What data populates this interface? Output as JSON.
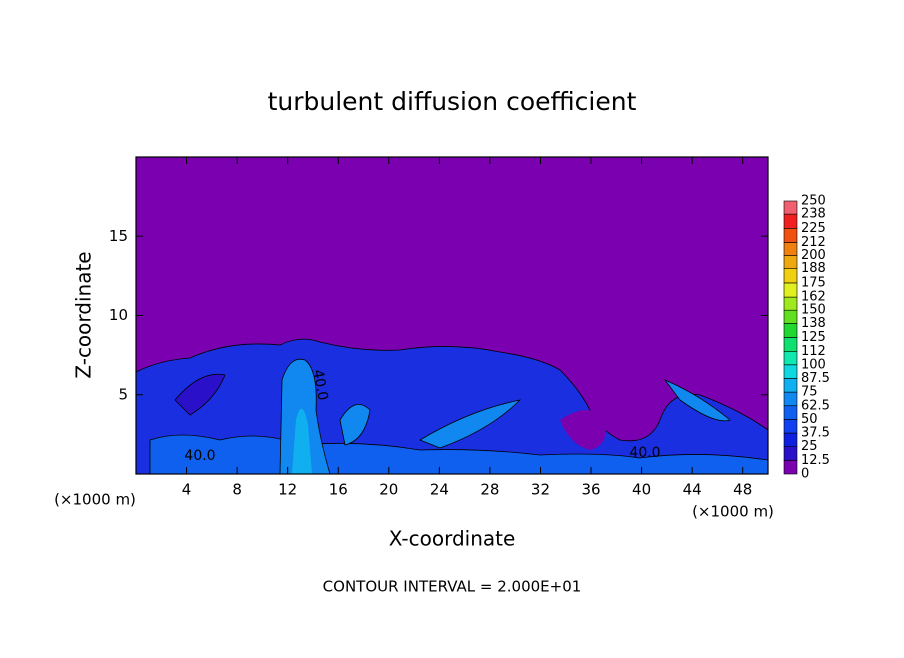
{
  "chart_data": {
    "type": "contour",
    "title": "turbulent diffusion coefficient",
    "xlabel": "X-coordinate",
    "ylabel": "Z-coordinate",
    "x_unit_left": "(×1000 m)",
    "x_unit_right": "(×1000 m)",
    "footer": "CONTOUR INTERVAL = 2.000E+01",
    "contour_labels": [
      "40.0",
      "40.0",
      "40.0"
    ],
    "xlim": [
      0,
      50
    ],
    "xticks": [
      4,
      8,
      12,
      16,
      20,
      24,
      28,
      32,
      36,
      40,
      44,
      48
    ],
    "ylim": [
      0,
      20
    ],
    "yticks": [
      5,
      10,
      15
    ],
    "clim": [
      0,
      250
    ],
    "colorbar_ticks": [
      0,
      12.5,
      25,
      37.5,
      50,
      62.5,
      75,
      87.5,
      100,
      112,
      125,
      138,
      150,
      162,
      175,
      188,
      200,
      212,
      225,
      238,
      250
    ],
    "colorbar_colors": [
      "#7a00b0",
      "#2a10c8",
      "#1020e0",
      "#1040f0",
      "#1060f0",
      "#1088f0",
      "#10b0f0",
      "#10d8e0",
      "#10e8b0",
      "#10e070",
      "#20d830",
      "#60e020",
      "#a0e820",
      "#e0f020",
      "#f0d010",
      "#f0a810",
      "#f08010",
      "#f05010",
      "#f02020",
      "#f06070"
    ]
  }
}
